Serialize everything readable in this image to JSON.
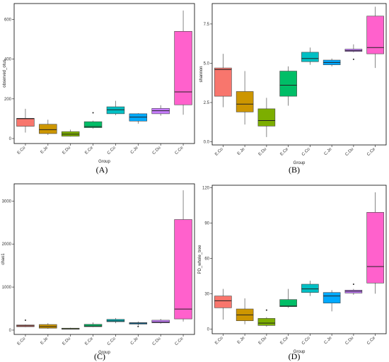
{
  "figure": {
    "panels": [
      "(A)",
      "(B)",
      "(C)",
      "(D)"
    ]
  },
  "chart_data": [
    {
      "type": "box",
      "panel": "(A)",
      "xlabel": "Group",
      "ylabel": "observed_otus",
      "categories": [
        "E.Co",
        "E.Je",
        "E.Du",
        "E.Ce",
        "C.Co",
        "C.Je",
        "C.Du",
        "C.Ce"
      ],
      "colors": [
        "#F8766D",
        "#CD9600",
        "#7CAE00",
        "#00BE67",
        "#00BFC4",
        "#00A9FF",
        "#C77CFF",
        "#FF61CC"
      ],
      "ylim": [
        -25,
        680
      ],
      "yticks": [
        0,
        200,
        400,
        600
      ],
      "boxes": [
        {
          "min": 30,
          "q1": 62,
          "median": 100,
          "q3": 102,
          "max": 150,
          "outliers": []
        },
        {
          "min": 18,
          "q1": 25,
          "median": 45,
          "q3": 72,
          "max": 95,
          "outliers": []
        },
        {
          "min": 10,
          "q1": 12,
          "median": 22,
          "q3": 35,
          "max": 45,
          "outliers": []
        },
        {
          "min": 50,
          "q1": 55,
          "median": 60,
          "q3": 85,
          "max": 90,
          "outliers": [
            130
          ]
        },
        {
          "min": 118,
          "q1": 125,
          "median": 145,
          "q3": 160,
          "max": 190,
          "outliers": []
        },
        {
          "min": 75,
          "q1": 88,
          "median": 108,
          "q3": 125,
          "max": 128,
          "outliers": []
        },
        {
          "min": 115,
          "q1": 125,
          "median": 140,
          "q3": 152,
          "max": 168,
          "outliers": []
        },
        {
          "min": 120,
          "q1": 170,
          "median": 235,
          "q3": 540,
          "max": 645,
          "outliers": []
        }
      ]
    },
    {
      "type": "box",
      "panel": "(B)",
      "xlabel": "Group",
      "ylabel": "shannon",
      "categories": [
        "E.Co",
        "E.Je",
        "E.Du",
        "E.Ce",
        "C.Co",
        "C.Je",
        "C.Du",
        "C.Ce"
      ],
      "colors": [
        "#F8766D",
        "#CD9600",
        "#7CAE00",
        "#00BE67",
        "#00BFC4",
        "#00A9FF",
        "#C77CFF",
        "#FF61CC"
      ],
      "ylim": [
        -0.2,
        8.8
      ],
      "yticks": [
        0.0,
        2.5,
        5.0,
        7.5
      ],
      "ytick_labels": [
        "0.0",
        "2.5",
        "5.0",
        "7.5"
      ],
      "boxes": [
        {
          "min": 2.2,
          "q1": 2.9,
          "median": 4.6,
          "q3": 4.7,
          "max": 5.6,
          "outliers": []
        },
        {
          "min": 1.1,
          "q1": 1.9,
          "median": 2.4,
          "q3": 3.2,
          "max": 4.5,
          "outliers": []
        },
        {
          "min": 0.3,
          "q1": 1.0,
          "median": 1.35,
          "q3": 2.1,
          "max": 2.8,
          "outliers": []
        },
        {
          "min": 2.3,
          "q1": 2.9,
          "median": 3.6,
          "q3": 4.5,
          "max": 4.8,
          "outliers": []
        },
        {
          "min": 4.9,
          "q1": 5.1,
          "median": 5.3,
          "q3": 5.7,
          "max": 6.0,
          "outliers": []
        },
        {
          "min": 4.8,
          "q1": 4.9,
          "median": 5.05,
          "q3": 5.2,
          "max": 5.3,
          "outliers": []
        },
        {
          "min": 5.7,
          "q1": 5.75,
          "median": 5.8,
          "q3": 5.9,
          "max": 6.2,
          "outliers": [
            5.25
          ]
        },
        {
          "min": 4.7,
          "q1": 5.6,
          "median": 6.0,
          "q3": 8.0,
          "max": 8.6,
          "outliers": []
        }
      ]
    },
    {
      "type": "box",
      "panel": "(C)",
      "xlabel": "Group",
      "ylabel": "chao1",
      "categories": [
        "E.Co",
        "E.Je",
        "E.Du",
        "E.Ce",
        "C.Co",
        "C.Je",
        "C.Du",
        "C.Ce"
      ],
      "colors": [
        "#F8766D",
        "#CD9600",
        "#7CAE00",
        "#00BE67",
        "#00BFC4",
        "#00A9FF",
        "#C77CFF",
        "#FF61CC"
      ],
      "ylim": [
        -100,
        3400
      ],
      "yticks": [
        0,
        1000,
        2000,
        3000
      ],
      "boxes": [
        {
          "min": 70,
          "q1": 80,
          "median": 100,
          "q3": 120,
          "max": 130,
          "outliers": [
            230
          ]
        },
        {
          "min": 30,
          "q1": 45,
          "median": 80,
          "q3": 130,
          "max": 160,
          "outliers": []
        },
        {
          "min": 15,
          "q1": 22,
          "median": 30,
          "q3": 45,
          "max": 55,
          "outliers": []
        },
        {
          "min": 70,
          "q1": 80,
          "median": 95,
          "q3": 135,
          "max": 180,
          "outliers": []
        },
        {
          "min": 160,
          "q1": 195,
          "median": 215,
          "q3": 250,
          "max": 280,
          "outliers": []
        },
        {
          "min": 110,
          "q1": 140,
          "median": 160,
          "q3": 175,
          "max": 200,
          "outliers": [
            85
          ]
        },
        {
          "min": 150,
          "q1": 170,
          "median": 185,
          "q3": 230,
          "max": 260,
          "outliers": []
        },
        {
          "min": 200,
          "q1": 260,
          "median": 490,
          "q3": 2570,
          "max": 3250,
          "outliers": []
        }
      ]
    },
    {
      "type": "box",
      "panel": "(D)",
      "xlabel": "Group",
      "ylabel": "PD_whole_tree",
      "categories": [
        "E.Co",
        "E.Je",
        "E.Du",
        "E.Ce",
        "C.Co",
        "C.Je",
        "C.Du",
        "C.Ce"
      ],
      "colors": [
        "#F8766D",
        "#CD9600",
        "#7CAE00",
        "#00BE67",
        "#00BFC4",
        "#00A9FF",
        "#C77CFF",
        "#FF61CC"
      ],
      "ylim": [
        -4,
        122
      ],
      "yticks": [
        0,
        30,
        60,
        90,
        120
      ],
      "boxes": [
        {
          "min": 8,
          "q1": 18,
          "median": 24,
          "q3": 28,
          "max": 34,
          "outliers": []
        },
        {
          "min": 4,
          "q1": 7,
          "median": 12,
          "q3": 17,
          "max": 26,
          "outliers": []
        },
        {
          "min": 2,
          "q1": 3,
          "median": 5,
          "q3": 9,
          "max": 10,
          "outliers": [
            16
          ]
        },
        {
          "min": 18,
          "q1": 19,
          "median": 19.5,
          "q3": 25,
          "max": 34,
          "outliers": []
        },
        {
          "min": 28,
          "q1": 31,
          "median": 34,
          "q3": 38,
          "max": 41,
          "outliers": []
        },
        {
          "min": 15,
          "q1": 22,
          "median": 28,
          "q3": 31,
          "max": 33,
          "outliers": []
        },
        {
          "min": 29,
          "q1": 30.5,
          "median": 32,
          "q3": 33,
          "max": 34,
          "outliers": [
            38
          ]
        },
        {
          "min": 30,
          "q1": 39,
          "median": 53,
          "q3": 99,
          "max": 116,
          "outliers": []
        }
      ]
    }
  ]
}
